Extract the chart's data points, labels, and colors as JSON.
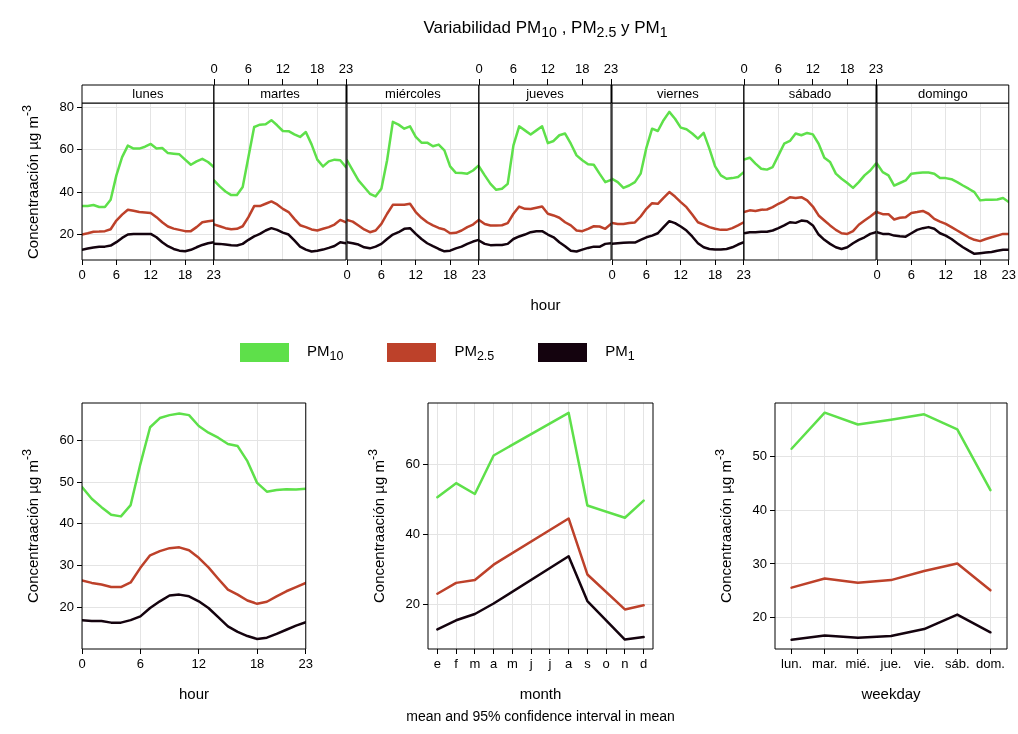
{
  "chart_data": [
    {
      "type": "line",
      "subtitle": "lunes",
      "ylabel": "Concentraación µg m$^{-3}$",
      "legend": "bottom",
      "grid": true,
      "x": [
        0,
        1,
        2,
        3,
        4,
        5,
        6,
        7,
        8,
        9,
        10,
        11,
        12,
        13,
        14,
        15,
        16,
        17,
        18,
        19,
        20,
        21,
        22,
        23
      ],
      "xlim": [
        0,
        23
      ],
      "xticks": [
        0,
        6,
        12,
        18,
        23
      ],
      "ylim": [
        8,
        82
      ],
      "yticks": [
        20,
        40,
        60,
        80
      ],
      "series": [
        {
          "name": "PM$_{10}$",
          "color": "#5ee04a",
          "values": [
            33.4,
            33.5,
            33.9,
            33,
            33,
            36.4,
            47.9,
            56.5,
            61.9,
            60.5,
            60.5,
            61.4,
            62.7,
            60.6,
            60.8,
            58.4,
            58.1,
            57.8,
            55.3,
            52.9,
            54.5,
            55.7,
            54.2,
            51.8
          ]
        },
        {
          "name": "PM$_{2.5}$",
          "color": "#bd412a",
          "values": [
            20,
            20.6,
            21.3,
            21.4,
            21.6,
            22.5,
            26.6,
            29.4,
            31.7,
            31.2,
            30.6,
            30.4,
            30.2,
            28.2,
            25.8,
            23.8,
            22.8,
            22.2,
            21.6,
            21.6,
            23.5,
            25.8,
            26.3,
            26.6
          ]
        },
        {
          "name": "PM$_{1}$",
          "color": "#14030e",
          "values": [
            12.8,
            13.4,
            13.9,
            14.2,
            14.3,
            14.8,
            16.4,
            18.4,
            20,
            20.3,
            20.2,
            20.3,
            20.3,
            18.7,
            16.4,
            14.5,
            13.2,
            12.4,
            12.1,
            12.8,
            14,
            15.1,
            15.9,
            16.4
          ]
        }
      ]
    },
    {
      "type": "line",
      "subtitle": "martes",
      "grid": true,
      "tick_labels": false,
      "x": [
        0,
        1,
        2,
        3,
        4,
        5,
        6,
        7,
        8,
        9,
        10,
        11,
        12,
        13,
        14,
        15,
        16,
        17,
        18,
        19,
        20,
        21,
        22,
        23
      ],
      "xlim": [
        0,
        23
      ],
      "xticks": [
        0,
        6,
        12,
        18,
        23
      ],
      "x2lim": [
        0,
        23
      ],
      "x2ticks": [
        0,
        6,
        12,
        18,
        23
      ],
      "ylim": [
        8,
        82
      ],
      "yticks": [
        20,
        40,
        60,
        80
      ],
      "series": [
        {
          "color": "#5ee04a",
          "values": [
            45.5,
            42.7,
            40.3,
            38.6,
            38.6,
            42.4,
            56.5,
            70.7,
            71.8,
            72,
            73.9,
            71.5,
            68.8,
            68.7,
            67.2,
            66,
            68.3,
            62.5,
            55.3,
            52.1,
            54.5,
            55.3,
            55,
            51.8
          ]
        },
        {
          "color": "#bd412a",
          "values": [
            24.7,
            23.9,
            23,
            22.5,
            22.7,
            23.9,
            28.2,
            33.4,
            33.4,
            34.5,
            35.6,
            34.2,
            32.1,
            30.6,
            27.4,
            24.4,
            23.5,
            22.4,
            21.9,
            22.7,
            23.5,
            24.7,
            26.9,
            25.8
          ]
        },
        {
          "color": "#14030e",
          "values": [
            15.7,
            15.6,
            15.3,
            15,
            14.8,
            15.6,
            17.5,
            19.1,
            20.3,
            21.9,
            23,
            22.2,
            20.9,
            20,
            17.2,
            14.3,
            12.9,
            12,
            12.4,
            12.9,
            13.7,
            14.6,
            16.4,
            15.9
          ]
        }
      ]
    },
    {
      "type": "line",
      "subtitle": "miércoles",
      "grid": true,
      "tick_labels": "x",
      "x": [
        0,
        1,
        2,
        3,
        4,
        5,
        6,
        7,
        8,
        9,
        10,
        11,
        12,
        13,
        14,
        15,
        16,
        17,
        18,
        19,
        20,
        21,
        22,
        23
      ],
      "xlim": [
        0,
        23
      ],
      "xticks": [
        0,
        6,
        12,
        18,
        23
      ],
      "ylim": [
        8,
        82
      ],
      "yticks": [
        20,
        40,
        60,
        80
      ],
      "series": [
        {
          "color": "#5ee04a",
          "values": [
            55,
            50.2,
            45.5,
            42.4,
            39.2,
            38,
            41.6,
            55,
            73.1,
            71.8,
            69.9,
            71,
            66,
            63.3,
            63.3,
            61.6,
            62.4,
            59.7,
            52.1,
            49.1,
            49,
            48.7,
            50.2,
            52.6
          ]
        },
        {
          "color": "#bd412a",
          "values": [
            26.9,
            26.1,
            24.3,
            22.4,
            21.1,
            21.9,
            25,
            29.8,
            34,
            34,
            34,
            34.5,
            30.6,
            27.9,
            25.8,
            24.3,
            23.1,
            22.4,
            20.6,
            20.8,
            21.9,
            23.5,
            24.7,
            26.9
          ]
        },
        {
          "color": "#14030e",
          "values": [
            16.4,
            15.9,
            15.3,
            14,
            13.5,
            14.3,
            15.6,
            17.9,
            20,
            21.1,
            22.7,
            23,
            20.3,
            17.9,
            15.9,
            14.5,
            13.2,
            12.1,
            12.4,
            13.5,
            14.3,
            15.6,
            16.7,
            17.5
          ]
        }
      ]
    },
    {
      "type": "line",
      "title": "Variabilidad PM$_{10}$ , PM$_{2.5}$ y PM$_{1}$",
      "subtitle": "jueves",
      "xlabel": "hour",
      "grid": true,
      "tick_labels": false,
      "x": [
        0,
        1,
        2,
        3,
        4,
        5,
        6,
        7,
        8,
        9,
        10,
        11,
        12,
        13,
        14,
        15,
        16,
        17,
        18,
        19,
        20,
        21,
        22,
        23
      ],
      "xlim": [
        0,
        23
      ],
      "xticks": [
        0,
        6,
        12,
        18,
        23
      ],
      "x2lim": [
        0,
        23
      ],
      "x2ticks": [
        0,
        6,
        12,
        18,
        23
      ],
      "ylim": [
        8,
        82
      ],
      "yticks": [
        20,
        40,
        60,
        80
      ],
      "series": [
        {
          "color": "#5ee04a",
          "values": [
            52.1,
            47.9,
            43.9,
            41.1,
            41.6,
            43.9,
            62,
            71,
            69.1,
            67.2,
            69.1,
            71,
            63.1,
            64.1,
            66.8,
            67.6,
            62.8,
            57.3,
            55,
            53.1,
            52.9,
            48.7,
            44.7,
            45.8
          ]
        },
        {
          "color": "#bd412a",
          "values": [
            26.9,
            25,
            24.3,
            24.3,
            24.4,
            25.4,
            29.8,
            33.2,
            32.1,
            32,
            32.6,
            33.2,
            29.8,
            29,
            27.9,
            25.8,
            24.3,
            21.9,
            21.6,
            22.7,
            23.9,
            23.8,
            22.7,
            25
          ]
        },
        {
          "color": "#14030e",
          "values": [
            17.2,
            15.6,
            15,
            15.1,
            15.1,
            15.6,
            17.9,
            19.1,
            20,
            21.1,
            21.6,
            21.6,
            20,
            18.7,
            16.4,
            14.5,
            12.4,
            12,
            12.9,
            13.7,
            14.3,
            14.2,
            15.6,
            15.9
          ]
        }
      ]
    },
    {
      "type": "line",
      "subtitle": "viernes",
      "grid": true,
      "tick_labels": "x",
      "x": [
        0,
        1,
        2,
        3,
        4,
        5,
        6,
        7,
        8,
        9,
        10,
        11,
        12,
        13,
        14,
        15,
        16,
        17,
        18,
        19,
        20,
        21,
        22,
        23
      ],
      "xlim": [
        0,
        23
      ],
      "xticks": [
        0,
        6,
        12,
        18,
        23
      ],
      "ylim": [
        8,
        82
      ],
      "yticks": [
        20,
        40,
        60,
        80
      ],
      "series": [
        {
          "color": "#5ee04a",
          "values": [
            46.3,
            44.7,
            42,
            43.1,
            44.7,
            48.7,
            60.9,
            69.9,
            68.8,
            73.9,
            77.8,
            74.6,
            70.4,
            69.6,
            67.6,
            65.2,
            67.9,
            60.5,
            52.1,
            47.9,
            46.3,
            46.6,
            47.1,
            49.4
          ]
        },
        {
          "color": "#bd412a",
          "values": [
            25.5,
            25,
            25,
            25.4,
            25.7,
            28.5,
            32.1,
            34.8,
            34.5,
            37.3,
            40,
            37.9,
            35.3,
            32.9,
            29.4,
            25.8,
            24.7,
            23.5,
            22.7,
            22.2,
            22.2,
            23,
            24.3,
            25.8
          ]
        },
        {
          "color": "#14030e",
          "values": [
            15.6,
            15.9,
            16.1,
            16.2,
            16.2,
            17.5,
            18.7,
            19.5,
            20.6,
            23.5,
            26.3,
            25.4,
            23.8,
            21.9,
            19.1,
            15.9,
            14,
            13.2,
            12.9,
            12.9,
            13.2,
            14,
            15.3,
            16.4
          ]
        }
      ]
    },
    {
      "type": "line",
      "subtitle": "sábado",
      "grid": true,
      "tick_labels": false,
      "x": [
        0,
        1,
        2,
        3,
        4,
        5,
        6,
        7,
        8,
        9,
        10,
        11,
        12,
        13,
        14,
        15,
        16,
        17,
        18,
        19,
        20,
        21,
        22,
        23
      ],
      "xlim": [
        0,
        23
      ],
      "xticks": [
        0,
        6,
        12,
        18,
        23
      ],
      "x2lim": [
        0,
        23
      ],
      "x2ticks": [
        0,
        6,
        12,
        18,
        23
      ],
      "ylim": [
        8,
        82
      ],
      "yticks": [
        20,
        40,
        60,
        80
      ],
      "series": [
        {
          "color": "#5ee04a",
          "values": [
            55.3,
            56.2,
            53.4,
            51,
            50.6,
            51.8,
            57.3,
            62.8,
            64.1,
            67.6,
            66.8,
            67.9,
            67.2,
            62.8,
            56.2,
            54.2,
            48.7,
            46.3,
            44.3,
            42,
            44.7,
            47.9,
            50.2,
            53.4
          ]
        },
        {
          "color": "#bd412a",
          "values": [
            30.6,
            31.4,
            31.1,
            31.7,
            31.8,
            32.9,
            34.5,
            35.8,
            37.6,
            37.2,
            37.6,
            36.1,
            33.2,
            29,
            26.6,
            24.3,
            22.2,
            20.6,
            20.3,
            21.6,
            24.6,
            26.6,
            28.5,
            30.6
          ]
        },
        {
          "color": "#14030e",
          "values": [
            20.6,
            21.1,
            21.1,
            21.3,
            21.3,
            21.9,
            23,
            24.3,
            25.8,
            25.5,
            26.6,
            26.3,
            24.3,
            20,
            17.5,
            15.6,
            14,
            13.2,
            14,
            15.9,
            17.5,
            18.7,
            20.3,
            21.1
          ]
        }
      ]
    },
    {
      "type": "line",
      "subtitle": "domingo",
      "grid": true,
      "tick_labels": "x",
      "x": [
        0,
        1,
        2,
        3,
        4,
        5,
        6,
        7,
        8,
        9,
        10,
        11,
        12,
        13,
        14,
        15,
        16,
        17,
        18,
        19,
        20,
        21,
        22,
        23
      ],
      "xlim": [
        0,
        23
      ],
      "xticks": [
        0,
        6,
        12,
        18,
        23
      ],
      "ylim": [
        8,
        82
      ],
      "yticks": [
        20,
        40,
        60,
        80
      ],
      "series": [
        {
          "color": "#5ee04a",
          "values": [
            53.4,
            49.4,
            47.9,
            43.1,
            44.3,
            45.5,
            48.7,
            49,
            49.2,
            49.2,
            48.7,
            46.6,
            46.6,
            46.1,
            44.7,
            43.1,
            41.6,
            40,
            36.1,
            36.4,
            36.4,
            36.5,
            37.2,
            35.3
          ]
        },
        {
          "color": "#bd412a",
          "values": [
            30.6,
            29.6,
            29.6,
            27.1,
            27.9,
            28.2,
            30.2,
            30.6,
            31.1,
            29.8,
            27.4,
            26.1,
            25,
            23.5,
            21.9,
            20.3,
            18.7,
            17.5,
            16.9,
            17.9,
            18.7,
            19.5,
            20.3,
            20.3
          ]
        },
        {
          "color": "#14030e",
          "values": [
            21.1,
            20.3,
            20.3,
            19.5,
            19.2,
            19,
            20.6,
            22.2,
            23,
            23.5,
            22.7,
            20.6,
            19.5,
            17.9,
            15.9,
            14,
            12.4,
            10.9,
            11.2,
            11.5,
            11.8,
            12.4,
            12.8,
            12.8
          ]
        }
      ]
    },
    {
      "type": "line",
      "xlabel": "hour",
      "ylabel": "Concentraación µg m$^{-3}$",
      "grid": true,
      "x": [
        0,
        1,
        2,
        3,
        4,
        5,
        6,
        7,
        8,
        9,
        10,
        11,
        12,
        13,
        14,
        15,
        16,
        17,
        18,
        19,
        20,
        21,
        22,
        23
      ],
      "xlim": [
        0,
        23
      ],
      "xticks": [
        0,
        6,
        12,
        18,
        23
      ],
      "ylim": [
        10.1,
        68.9
      ],
      "yticks": [
        20,
        30,
        40,
        50,
        60
      ],
      "series": [
        {
          "color": "#5ee04a",
          "values": [
            48.8,
            46,
            44,
            42.2,
            41.8,
            44.5,
            54.3,
            63.1,
            65.3,
            66,
            66.4,
            66,
            63.4,
            61.8,
            60.6,
            59.1,
            58.6,
            55,
            49.8,
            47.7,
            48.1,
            48.3,
            48.2,
            48.4
          ]
        },
        {
          "color": "#bd412a",
          "values": [
            26.5,
            25.9,
            25.5,
            24.9,
            24.9,
            26,
            29.5,
            32.5,
            33.5,
            34.2,
            34.4,
            33.7,
            31.9,
            29.6,
            26.9,
            24.3,
            23.1,
            21.7,
            20.9,
            21.4,
            22.7,
            23.9,
            24.9,
            25.9
          ]
        },
        {
          "color": "#14030e",
          "values": [
            17,
            16.8,
            16.8,
            16.4,
            16.4,
            17,
            17.9,
            19.9,
            21.5,
            22.9,
            23.1,
            22.7,
            21.5,
            19.9,
            17.7,
            15.5,
            14.2,
            13.2,
            12.5,
            12.8,
            13.7,
            14.7,
            15.7,
            16.5
          ]
        }
      ]
    },
    {
      "type": "line",
      "xlabel": "month",
      "ylabel": "Concentraación µg m$^{-3}$",
      "grid": true,
      "annotations": [
        "mean and 95% confidence interval in mean"
      ],
      "categories": [
        "e",
        "f",
        "m",
        "a",
        "m",
        "j",
        "j",
        "a",
        "s",
        "o",
        "n",
        "d"
      ],
      "ylim": [
        7.3,
        77.6
      ],
      "yticks": [
        20,
        40,
        60
      ],
      "series": [
        {
          "color": "#5ee04a",
          "values": [
            50.7,
            54.7,
            51.6,
            62.6,
            null,
            null,
            null,
            74.8,
            48.3,
            null,
            44.8,
            49.7
          ]
        },
        {
          "color": "#bd412a",
          "values": [
            23.1,
            26.2,
            27,
            31.4,
            null,
            null,
            null,
            44.6,
            28.6,
            null,
            18.6,
            19.8
          ]
        },
        {
          "color": "#14030e",
          "values": [
            12.9,
            15.5,
            17.3,
            20.3,
            null,
            null,
            null,
            33.8,
            21,
            null,
            10,
            10.7
          ]
        }
      ]
    },
    {
      "type": "line",
      "xlabel": "weekday",
      "ylabel": "Concentraación µg m$^{-3}$",
      "grid": true,
      "categories": [
        "lun.",
        "mar.",
        "mié.",
        "jue.",
        "vie.",
        "sáb.",
        "dom."
      ],
      "ylim": [
        14.2,
        59.9
      ],
      "yticks": [
        20,
        30,
        40,
        50
      ],
      "series": [
        {
          "color": "#5ee04a",
          "values": [
            51.4,
            58.1,
            55.9,
            56.8,
            57.8,
            55,
            43.7
          ]
        },
        {
          "color": "#bd412a",
          "values": [
            25.6,
            27.3,
            26.5,
            27,
            28.7,
            30.1,
            25.1
          ]
        },
        {
          "color": "#14030e",
          "values": [
            15.9,
            16.7,
            16.3,
            16.6,
            17.9,
            20.6,
            17.3
          ]
        }
      ]
    }
  ]
}
